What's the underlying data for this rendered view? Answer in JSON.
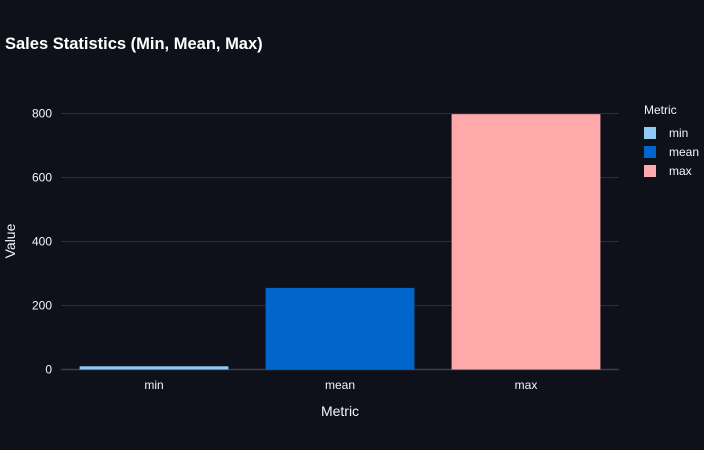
{
  "chart_data": {
    "type": "bar",
    "title": "Sales Statistics (Min, Mean, Max)",
    "xlabel": "Metric",
    "ylabel": "Value",
    "categories": [
      "min",
      "mean",
      "max"
    ],
    "values": [
      10,
      255,
      798
    ],
    "colors": [
      "#8ecbf7",
      "#0066cc",
      "#ffa9aa"
    ],
    "yticks": [
      0,
      200,
      400,
      600,
      800
    ],
    "ylim": [
      0,
      840
    ],
    "grid": true,
    "legend": {
      "title": "Metric",
      "placement": "right",
      "items": [
        "min",
        "mean",
        "max"
      ]
    },
    "theme": {
      "background": "#0f111a",
      "grid_color": "#2c2f3a",
      "text_color": "#f2f5fa"
    }
  }
}
